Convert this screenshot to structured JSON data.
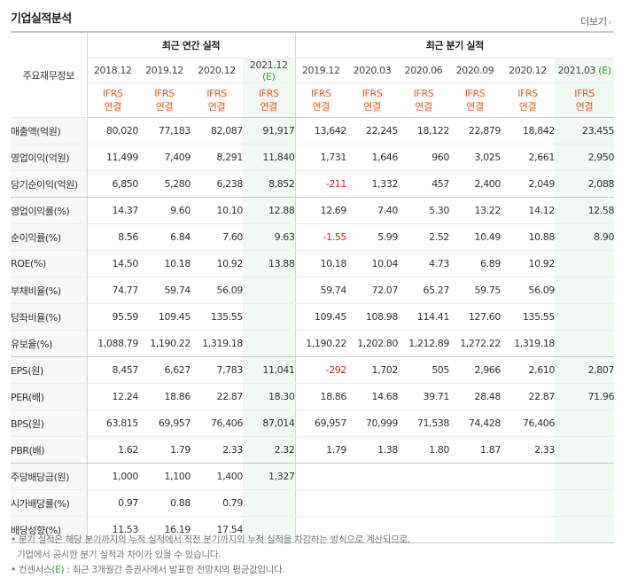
{
  "title": "기업실적분석",
  "more_label": "더보기",
  "header": {
    "corner_label": "주요재무정보",
    "annual_label": "최근 연간 실적",
    "quarter_label": "최근 분기 실적",
    "estimate_suffix": "(E)",
    "annual_periods": [
      "2018.12",
      "2019.12",
      "2020.12",
      "2021.12"
    ],
    "quarter_periods": [
      "2019.12",
      "2020.03",
      "2020.06",
      "2020.09",
      "2020.12",
      "2021.03"
    ],
    "ifrs_line1": "IFRS",
    "ifrs_line2": "연결"
  },
  "rows": [
    {
      "label": "매출액(억원)",
      "annual": [
        "80,020",
        "77,183",
        "82,087",
        "91,917"
      ],
      "quarter": [
        "13,642",
        "22,245",
        "18,122",
        "22,879",
        "18,842",
        "23,455"
      ]
    },
    {
      "label": "영업이익(억원)",
      "annual": [
        "11,499",
        "7,409",
        "8,291",
        "11,840"
      ],
      "quarter": [
        "1,731",
        "1,646",
        "960",
        "3,025",
        "2,661",
        "2,950"
      ]
    },
    {
      "label": "당기순이익(억원)",
      "annual": [
        "6,850",
        "5,280",
        "6,238",
        "8,852"
      ],
      "quarter": [
        "-211",
        "1,332",
        "457",
        "2,400",
        "2,049",
        "2,088"
      ]
    },
    {
      "label": "영업이익률(%)",
      "annual": [
        "14.37",
        "9.60",
        "10.10",
        "12.88"
      ],
      "quarter": [
        "12.69",
        "7.40",
        "5.30",
        "13.22",
        "14.12",
        "12.58"
      ]
    },
    {
      "label": "순이익률(%)",
      "annual": [
        "8.56",
        "6.84",
        "7.60",
        "9.63"
      ],
      "quarter": [
        "-1.55",
        "5.99",
        "2.52",
        "10.49",
        "10.88",
        "8.90"
      ]
    },
    {
      "label": "ROE(%)",
      "annual": [
        "14.50",
        "10.18",
        "10.92",
        "13.88"
      ],
      "quarter": [
        "10.18",
        "10.04",
        "4.73",
        "6.89",
        "10.92",
        ""
      ]
    },
    {
      "label": "부채비율(%)",
      "annual": [
        "74.77",
        "59.74",
        "56.09",
        ""
      ],
      "quarter": [
        "59.74",
        "72.07",
        "65.27",
        "59.75",
        "56.09",
        ""
      ]
    },
    {
      "label": "당좌비율(%)",
      "annual": [
        "95.59",
        "109.45",
        "135.55",
        ""
      ],
      "quarter": [
        "109.45",
        "108.98",
        "114.41",
        "127.60",
        "135.55",
        ""
      ]
    },
    {
      "label": "유보율(%)",
      "annual": [
        "1,088.79",
        "1,190.22",
        "1,319.18",
        ""
      ],
      "quarter": [
        "1,190.22",
        "1,202.80",
        "1,212.89",
        "1,272.22",
        "1,319.18",
        ""
      ]
    },
    {
      "label": "EPS(원)",
      "annual": [
        "8,457",
        "6,627",
        "7,783",
        "11,041"
      ],
      "quarter": [
        "-292",
        "1,702",
        "505",
        "2,966",
        "2,610",
        "2,807"
      ]
    },
    {
      "label": "PER(배)",
      "annual": [
        "12.24",
        "18.86",
        "22.87",
        "18.30"
      ],
      "quarter": [
        "18.86",
        "14.68",
        "39.71",
        "28.48",
        "22.87",
        "71.96"
      ]
    },
    {
      "label": "BPS(원)",
      "annual": [
        "63,815",
        "69,957",
        "76,406",
        "87,014"
      ],
      "quarter": [
        "69,957",
        "70,999",
        "71,538",
        "74,428",
        "76,406",
        ""
      ]
    },
    {
      "label": "PBR(배)",
      "annual": [
        "1.62",
        "1.79",
        "2.33",
        "2.32"
      ],
      "quarter": [
        "1.79",
        "1.38",
        "1.80",
        "1.87",
        "2.33",
        ""
      ]
    },
    {
      "label": "주당배당금(원)",
      "annual": [
        "1,000",
        "1,100",
        "1,400",
        "1,327"
      ],
      "quarter": [
        "",
        "",
        "",
        "",
        "",
        ""
      ]
    },
    {
      "label": "시가배당률(%)",
      "annual": [
        "0.97",
        "0.88",
        "0.79",
        ""
      ],
      "quarter": [
        "",
        "",
        "",
        "",
        "",
        ""
      ]
    },
    {
      "label": "배당성향(%)",
      "annual": [
        "11.53",
        "16.19",
        "17.54",
        ""
      ],
      "quarter": [
        "",
        "",
        "",
        "",
        "",
        ""
      ]
    }
  ],
  "notes": {
    "line1": "분기 실적은 해당 분기까지의 누적 실적에서 직전 분기까지의 누적 실적을 차감하는 방식으로 계산되므로,",
    "line2": "기업에서 공시한 분기 실적과 차이가 있을 수 있습니다.",
    "line3_prefix": "컨센서스",
    "line3_e": "(E)",
    "line3_suffix": " : 최근 3개월간 증권사에서 발표한 전망치의 평균값입니다."
  },
  "colors": {
    "ifrs": "#e8591c",
    "estimate": "#3a9a3a",
    "negative": "#d3221c",
    "estimate_bg": "#f2f9f2",
    "label_bg": "#f7f7f7"
  }
}
